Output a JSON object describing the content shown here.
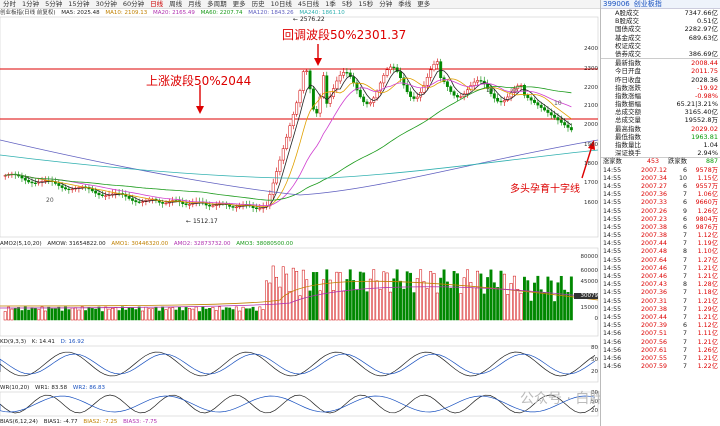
{
  "toolbar": {
    "items": [
      "分时",
      "1分钟",
      "5分钟",
      "15分钟",
      "30分钟",
      "60分钟",
      "日线",
      "周线",
      "月线",
      "多周期",
      "更多",
      "历史",
      "10日线",
      "45日线",
      "1季",
      "5秒",
      "15秒",
      "分钟",
      "季线",
      "更多"
    ],
    "active_index": 6
  },
  "main_legend": {
    "index_name": "创业板指(日线 前复权)",
    "ma5": "MA5: 2025.48",
    "ma10": "MA10: 2109.13",
    "ma20": "MA20: 2165.49",
    "ma60": "MA60: 2207.74",
    "ma120": "MA120: 1843.26",
    "ma240": "MA240: 1861.10"
  },
  "annotations": {
    "pullback": "回调波段50%2301.37",
    "rally": "上涨波段50%2044",
    "doji": "多头孕育十字线",
    "high_label": "2576.22",
    "low_label": "1512.17",
    "peak_label_mid": "10",
    "peak_label_right": "10",
    "left_label": "20",
    "mid_label": "20"
  },
  "price_axis": [
    "2400",
    "2300",
    "2200",
    "2100",
    "2000",
    "1900",
    "1800",
    "1700",
    "1600"
  ],
  "amo": {
    "legend": [
      "AMO2(5,10,20)",
      "AMOW: 31654822.00",
      "AMO1: 30446320.00",
      "AMO2: 32873732.00",
      "AMO3: 38080500.00"
    ],
    "axis": [
      "80000",
      "60000",
      "45000",
      "30079",
      "15000",
      "0"
    ],
    "current_badge": "30079"
  },
  "kdj": {
    "legend": [
      "KD(9,3,3)",
      "K: 14.41",
      "D: 16.92"
    ],
    "axis": [
      "80",
      "50",
      "20"
    ]
  },
  "wr": {
    "legend": [
      "WR(10,20)",
      "WR1: 83.58",
      "WR2: 86.83"
    ],
    "axis": [
      "80",
      "50",
      "20"
    ]
  },
  "bottom_legend": [
    "BIAS(6,12,24)",
    "BIAS1: -4.77",
    "BIAS2: -7.25",
    "BIAS3: -7.75"
  ],
  "side": {
    "code": "399006",
    "name": "创业板指",
    "top_rows": [
      {
        "label": "A股成交",
        "value": "7347.66亿"
      },
      {
        "label": "B股成交",
        "value": "0.51亿"
      },
      {
        "label": "国债成交",
        "value": "2282.97亿"
      },
      {
        "label": "基金成交",
        "value": "689.63亿"
      },
      {
        "label": "权证成交",
        "value": ""
      },
      {
        "label": "债券成交",
        "value": "386.69亿"
      }
    ],
    "stat_rows": [
      {
        "label": "最新指数",
        "value": "2008.44",
        "color": "red"
      },
      {
        "label": "今日开盘",
        "value": "2011.75",
        "color": "red"
      },
      {
        "label": "昨日收盘",
        "value": "2028.36",
        "color": ""
      },
      {
        "label": "指数涨跌",
        "value": "-19.92",
        "color": "red"
      },
      {
        "label": "指数涨幅",
        "value": "-0.98%",
        "color": "red"
      },
      {
        "label": "指数振幅",
        "value": "65.21|3.21%",
        "color": ""
      },
      {
        "label": "总成交额",
        "value": "3165.40亿",
        "color": ""
      },
      {
        "label": "总成交量",
        "value": "19552.8万",
        "color": ""
      },
      {
        "label": "最高指数",
        "value": "2029.02",
        "color": "red"
      },
      {
        "label": "最低指数",
        "value": "1963.81",
        "color": "green"
      },
      {
        "label": "指数量比",
        "value": "1.04",
        "color": ""
      },
      {
        "label": "深证换手",
        "value": "2.94%",
        "color": ""
      }
    ],
    "updown": {
      "label_up": "涨家数",
      "up": "453",
      "label_down": "跌家数",
      "down": "887"
    },
    "quotes": [
      {
        "t": "14:55",
        "p": "2007.12",
        "v": "6",
        "a": "9578万"
      },
      {
        "t": "14:55",
        "p": "2007.34",
        "v": "10",
        "a": "1.15亿"
      },
      {
        "t": "14:55",
        "p": "2007.27",
        "v": "6",
        "a": "9557万"
      },
      {
        "t": "14:55",
        "p": "2007.36",
        "v": "7",
        "a": "1.06亿"
      },
      {
        "t": "14:55",
        "p": "2007.33",
        "v": "6",
        "a": "9660万"
      },
      {
        "t": "14:55",
        "p": "2007.26",
        "v": "9",
        "a": "1.26亿"
      },
      {
        "t": "14:55",
        "p": "2007.23",
        "v": "6",
        "a": "9804万"
      },
      {
        "t": "14:55",
        "p": "2007.38",
        "v": "6",
        "a": "9876万"
      },
      {
        "t": "14:55",
        "p": "2007.38",
        "v": "7",
        "a": "1.12亿"
      },
      {
        "t": "14:55",
        "p": "2007.44",
        "v": "7",
        "a": "1.19亿"
      },
      {
        "t": "14:55",
        "p": "2007.48",
        "v": "8",
        "a": "1.10亿"
      },
      {
        "t": "14:55",
        "p": "2007.64",
        "v": "7",
        "a": "1.27亿"
      },
      {
        "t": "14:55",
        "p": "2007.46",
        "v": "7",
        "a": "1.21亿"
      },
      {
        "t": "14:55",
        "p": "2007.46",
        "v": "7",
        "a": "1.21亿"
      },
      {
        "t": "14:55",
        "p": "2007.43",
        "v": "8",
        "a": "1.28亿"
      },
      {
        "t": "14:55",
        "p": "2007.36",
        "v": "7",
        "a": "1.18亿"
      },
      {
        "t": "14:55",
        "p": "2007.31",
        "v": "7",
        "a": "1.21亿"
      },
      {
        "t": "14:55",
        "p": "2007.38",
        "v": "7",
        "a": "1.29亿"
      },
      {
        "t": "14:55",
        "p": "2007.44",
        "v": "7",
        "a": "1.21亿"
      },
      {
        "t": "14:55",
        "p": "2007.39",
        "v": "6",
        "a": "1.12亿"
      },
      {
        "t": "14:56",
        "p": "2007.51",
        "v": "7",
        "a": "1.11亿"
      },
      {
        "t": "14:56",
        "p": "2007.56",
        "v": "7",
        "a": "1.21亿"
      },
      {
        "t": "14:56",
        "p": "2007.61",
        "v": "7",
        "a": "1.26亿"
      },
      {
        "t": "14:56",
        "p": "2007.55",
        "v": "7",
        "a": "1.21亿"
      },
      {
        "t": "14:56",
        "p": "2007.59",
        "v": "7",
        "a": "1.22亿"
      }
    ]
  },
  "watermark": "公众号 · 白胖子",
  "colors": {
    "up": "#d00000",
    "down": "#008800",
    "ma5": "#222222",
    "ma10": "#e0a000",
    "ma20": "#d040d0",
    "ma60": "#1a9a1a",
    "ma120": "#6060c0",
    "ma240": "#30b0b0"
  }
}
